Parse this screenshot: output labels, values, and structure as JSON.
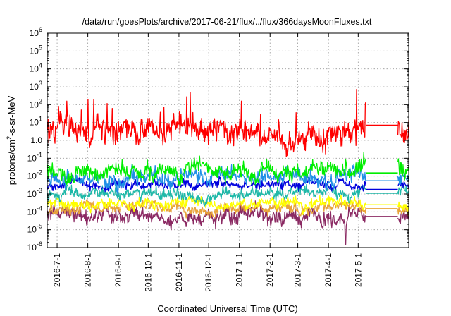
{
  "chart_data": {
    "type": "line",
    "title": "/data/run/goesPlots/archive/2017-06-21/flux/../flux/366daysMoonFluxes.txt",
    "xlabel": "Coordinated Universal Time (UTC)",
    "ylabel": "protons/cm²-s-sr-MeV",
    "ylabel_parts": {
      "pre": "protons/cm",
      "sup": "2",
      "post": "-s-sr-MeV"
    },
    "yscale": "log",
    "ylim": [
      1e-06,
      1000000.0
    ],
    "xlim": [
      "2016-06-21",
      "2017-06-21"
    ],
    "y_ticks": [
      {
        "base": "10",
        "exp": "-6",
        "value": 1e-06
      },
      {
        "base": "10",
        "exp": "-5",
        "value": 1e-05
      },
      {
        "base": "10",
        "exp": "-4",
        "value": 0.0001
      },
      {
        "base": "10",
        "exp": "-3",
        "value": 0.001
      },
      {
        "base": "10",
        "exp": "-2",
        "value": 0.01
      },
      {
        "base": "10",
        "exp": "-1",
        "value": 0.1
      },
      {
        "base": "1.0",
        "exp": "",
        "value": 1
      },
      {
        "base": "10",
        "exp": "1",
        "value": 10.0
      },
      {
        "base": "10",
        "exp": "2",
        "value": 100.0
      },
      {
        "base": "10",
        "exp": "3",
        "value": 1000.0
      },
      {
        "base": "10",
        "exp": "4",
        "value": 10000.0
      },
      {
        "base": "10",
        "exp": "5",
        "value": 100000.0
      },
      {
        "base": "10",
        "exp": "6",
        "value": 1000000.0
      }
    ],
    "x_ticks": [
      {
        "label": "2016-7-1",
        "date": "2016-07-01"
      },
      {
        "label": "2016-8-1",
        "date": "2016-08-01"
      },
      {
        "label": "2016-9-1",
        "date": "2016-09-01"
      },
      {
        "label": "2016-10-1",
        "date": "2016-10-01"
      },
      {
        "label": "2016-11-1",
        "date": "2016-11-01"
      },
      {
        "label": "2016-12-1",
        "date": "2016-12-01"
      },
      {
        "label": "2017-1-1",
        "date": "2017-01-01"
      },
      {
        "label": "2017-2-1",
        "date": "2017-02-01"
      },
      {
        "label": "2017-3-1",
        "date": "2017-03-01"
      },
      {
        "label": "2017-4-1",
        "date": "2017-04-01"
      },
      {
        "label": "2017-5-1",
        "date": "2017-05-01"
      }
    ],
    "data_gap": [
      "2017-05-09",
      "2017-06-10"
    ],
    "grid": true,
    "legend": "none",
    "series": [
      {
        "color": "#8b2a63",
        "level": 6e-05,
        "spread": 0.55,
        "gap_value": 5.5e-05,
        "dip": {
          "date": "2017-04-18",
          "value": 1.5e-06
        }
      },
      {
        "color": "#e8a33a",
        "level": 0.00015,
        "spread": 0.35,
        "gap_value": 0.00015
      },
      {
        "color": "#ffff00",
        "level": 0.00028,
        "spread": 0.35,
        "gap_value": 0.00025
      },
      {
        "color": "#1fb8a8",
        "level": 0.001,
        "spread": 0.4,
        "gap_value": 0.0011
      },
      {
        "color": "#0000dd",
        "level": 0.0035,
        "spread": 0.3,
        "gap_value": 0.0018
      },
      {
        "color": "#1f8fe6",
        "level": 0.008,
        "spread": 0.55,
        "gap_value": 0.0055
      },
      {
        "color": "#00ee00",
        "level": 0.02,
        "spread": 0.55,
        "gap_value": 0.015
      },
      {
        "color": "#ff0000",
        "level": 3.5,
        "spread": 0.9,
        "gap_value": 7
      }
    ]
  }
}
